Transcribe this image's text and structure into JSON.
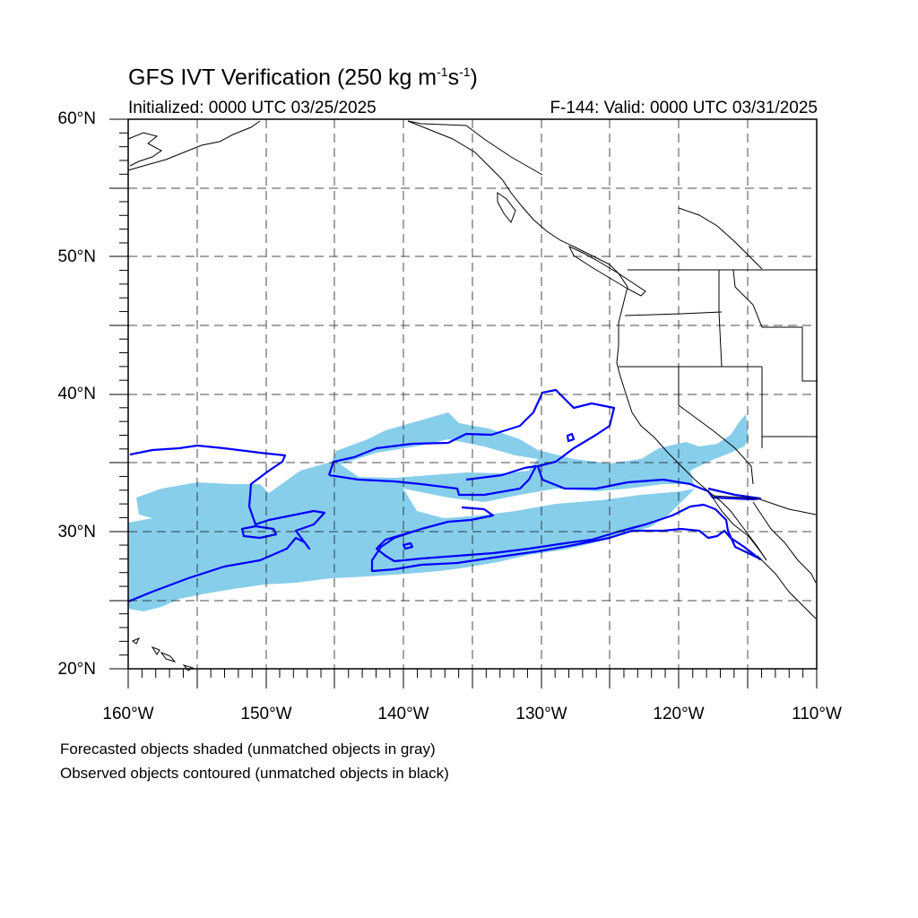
{
  "figure": {
    "title": "GFS IVT Verification (250 kg m",
    "title_exp1": "-1",
    "title_mid": "s",
    "title_exp2": "-1",
    "title_end": ")",
    "initialized": "Initialized: 0000 UTC 03/25/2025",
    "valid": "F-144: Valid: 0000 UTC 03/31/2025",
    "notes": [
      "Forecasted objects shaded (unmatched objects in gray)",
      "Observed objects contoured (unmatched objects in black)"
    ]
  },
  "map": {
    "projection": "cylindrical equidistant",
    "lon_range": [
      -160,
      -110
    ],
    "lat_range": [
      20,
      60
    ],
    "grid_step": 5,
    "grid": true,
    "lat_labels": [
      "60°N",
      "50°N",
      "40°N",
      "30°N",
      "20°N"
    ],
    "lon_labels": [
      "160°W",
      "150°W",
      "140°W",
      "130°W",
      "120°W",
      "110°W"
    ],
    "colors": {
      "forecast_fill": "#87ceeb",
      "observed_contour": "#0000ff",
      "coastline": "#000000",
      "grid": "#000000"
    }
  }
}
